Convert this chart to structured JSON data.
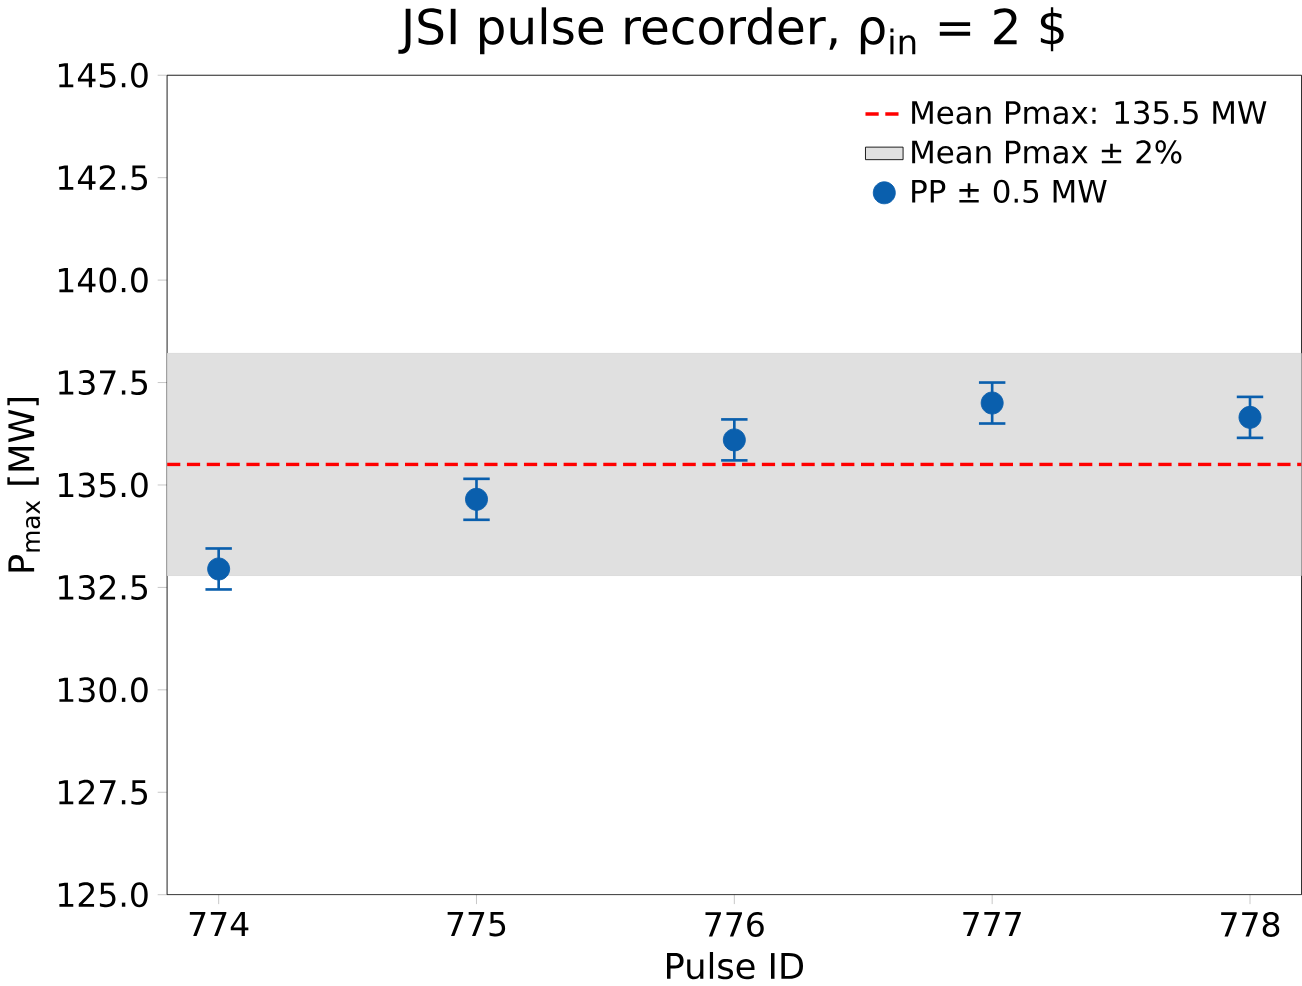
{
  "chart_data": {
    "type": "scatter",
    "title": "JSI pulse recorder, ρ$_{in}$ = 2 $",
    "xlabel": "Pulse ID",
    "ylabel": "P$_{max}$ [MW]",
    "x": [
      774,
      775,
      776,
      777,
      778
    ],
    "series": [
      {
        "name": "PP ± 0.5 MW",
        "color": "#0a5fad",
        "values": [
          132.95,
          134.65,
          136.1,
          137.0,
          136.65
        ],
        "errors": [
          0.5,
          0.5,
          0.5,
          0.5,
          0.5
        ]
      }
    ],
    "marker": "circle",
    "ref_lines": [
      {
        "axis": "y",
        "value": 135.5,
        "label": "Mean Pmax: 135.5 MW",
        "color": "#ff0000",
        "line_style": "dashed"
      }
    ],
    "bands": [
      {
        "axis": "y",
        "from": 132.79,
        "to": 138.21,
        "label": "Mean Pmax ± 2%",
        "color": "#e0e0e0"
      }
    ],
    "xlim": [
      773.8,
      778.2
    ],
    "ylim": [
      125,
      145
    ],
    "xticks": [
      774,
      775,
      776,
      777,
      778
    ],
    "yticks": [
      {
        "value": 125,
        "label": "125.0"
      },
      {
        "value": 127.5,
        "label": "127.5"
      },
      {
        "value": 130,
        "label": "130.0"
      },
      {
        "value": 132.5,
        "label": "132.5"
      },
      {
        "value": 135,
        "label": "135.0"
      },
      {
        "value": 137.5,
        "label": "137.5"
      },
      {
        "value": 140,
        "label": "140.0"
      },
      {
        "value": 142.5,
        "label": "142.5"
      },
      {
        "value": 145,
        "label": "145.0"
      }
    ],
    "legend": "top right",
    "grid": false
  }
}
